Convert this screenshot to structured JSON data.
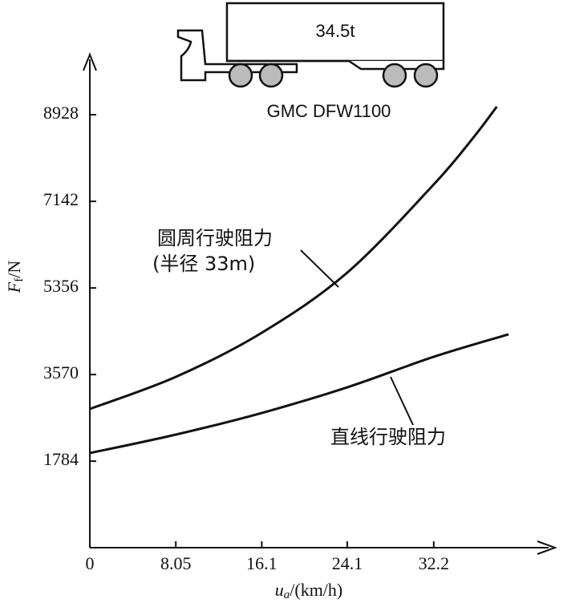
{
  "chart_data": {
    "type": "line",
    "truck_load": "34.5t",
    "truck_model": "GMC DFW1100",
    "xlabel": {
      "symbol": "u",
      "sub": "a",
      "unit": "/(km/h)"
    },
    "ylabel": {
      "symbol": "F",
      "sub": "f",
      "unit": "/N"
    },
    "xlim": [
      0,
      43.4
    ],
    "ylim": [
      0,
      10170
    ],
    "xticks": [
      0,
      8.05,
      16.1,
      24.1,
      32.2
    ],
    "yticks": [
      1784,
      3570,
      5356,
      7142,
      8928
    ],
    "series": [
      {
        "name": "圆周行驶阻力",
        "note": "(半径 33m)",
        "color": "#111111",
        "x": [
          0,
          8.05,
          16.1,
          24.1,
          32.2,
          36,
          38.1
        ],
        "values": [
          2861,
          3522,
          4432,
          5672,
          7491,
          8483,
          9095
        ]
      },
      {
        "name": "直线行驶阻力",
        "color": "#111111",
        "x": [
          0,
          8.05,
          16.1,
          24.1,
          32.2,
          39.2
        ],
        "values": [
          1951,
          2332,
          2778,
          3307,
          3936,
          4399
        ]
      }
    ]
  }
}
